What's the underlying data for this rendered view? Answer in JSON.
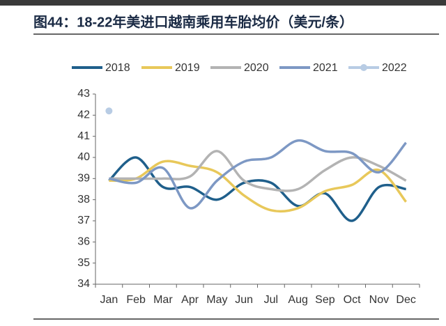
{
  "chart_data": {
    "type": "line",
    "title": "图44：18-22年美进口越南乘用车胎均价（美元/条）",
    "categories": [
      "Jan",
      "Feb",
      "Mar",
      "Apr",
      "May",
      "Jun",
      "Jul",
      "Aug",
      "Sep",
      "Oct",
      "Nov",
      "Dec"
    ],
    "series": [
      {
        "name": "2018",
        "color": "#1f5f8b",
        "values": [
          38.9,
          40.0,
          38.6,
          38.6,
          38.0,
          38.8,
          38.8,
          37.7,
          38.3,
          37.0,
          38.6,
          38.5
        ]
      },
      {
        "name": "2019",
        "color": "#e8c85a",
        "values": [
          38.9,
          39.0,
          39.8,
          39.6,
          39.3,
          38.2,
          37.5,
          37.6,
          38.4,
          38.7,
          39.4,
          37.9
        ]
      },
      {
        "name": "2020",
        "color": "#b3b3b3",
        "values": [
          39.0,
          39.0,
          39.0,
          39.1,
          40.3,
          38.9,
          38.5,
          38.5,
          39.4,
          40.0,
          39.6,
          38.9
        ]
      },
      {
        "name": "2021",
        "color": "#7d98c4",
        "values": [
          39.0,
          38.8,
          39.5,
          37.6,
          38.9,
          39.8,
          40.0,
          40.8,
          40.3,
          40.2,
          39.3,
          40.7
        ]
      },
      {
        "name": "2022",
        "color": "#b8cce4",
        "marker": true,
        "values": [
          42.2,
          null,
          null,
          null,
          null,
          null,
          null,
          null,
          null,
          null,
          null,
          null
        ]
      }
    ],
    "ylim": [
      34,
      43
    ],
    "yticks": [
      34,
      35,
      36,
      37,
      38,
      39,
      40,
      41,
      42,
      43
    ],
    "legend": "top"
  }
}
